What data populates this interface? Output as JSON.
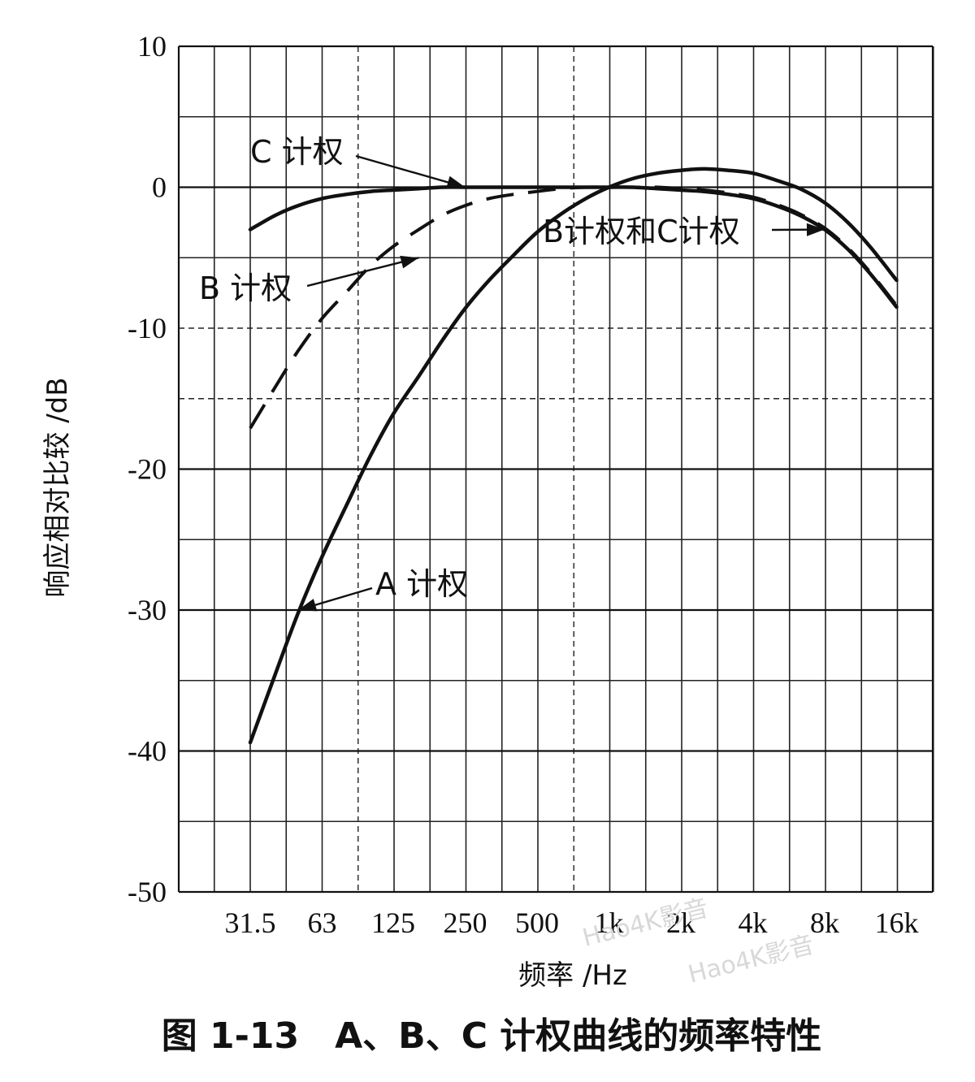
{
  "chart_data": {
    "type": "line",
    "title": "",
    "caption": "图 1-13　A、B、C 计权曲线的频率特性",
    "xlabel": "频率 /Hz",
    "ylabel": "响应相对比较 /dB",
    "x_scale": "log-octave",
    "categories": [
      "31.5",
      "63",
      "125",
      "250",
      "500",
      "1k",
      "2k",
      "4k",
      "8k",
      "16k"
    ],
    "x_values": [
      31.5,
      63,
      125,
      250,
      500,
      1000,
      2000,
      4000,
      8000,
      16000
    ],
    "y_ticks": [
      "10",
      "0",
      "-10",
      "-20",
      "-30",
      "-40",
      "-50"
    ],
    "y_tick_values": [
      10,
      0,
      -10,
      -20,
      -30,
      -40,
      -50
    ],
    "ylim": [
      -50,
      10
    ],
    "grid": true,
    "series": [
      {
        "name": "A计权",
        "style": "solid",
        "x": [
          31.5,
          40,
          50,
          63,
          80,
          100,
          125,
          160,
          200,
          250,
          315,
          400,
          500,
          630,
          800,
          1000,
          1250,
          1600,
          2000,
          2500,
          3150,
          4000,
          5000,
          6300,
          8000,
          10000,
          12500,
          16000
        ],
        "y": [
          -39.4,
          -34.6,
          -30.2,
          -26.2,
          -22.5,
          -19.1,
          -16.1,
          -13.4,
          -10.9,
          -8.6,
          -6.6,
          -4.8,
          -3.2,
          -1.9,
          -0.8,
          0,
          0.6,
          1.0,
          1.2,
          1.3,
          1.2,
          1.0,
          0.5,
          -0.1,
          -1.1,
          -2.5,
          -4.3,
          -6.6
        ]
      },
      {
        "name": "B计权",
        "style": "dashed",
        "x": [
          31.5,
          40,
          50,
          63,
          80,
          100,
          125,
          160,
          200,
          250,
          315,
          400,
          500,
          630,
          800,
          1000,
          1250,
          1600,
          2000,
          2500,
          3150,
          4000,
          5000,
          6300,
          8000,
          10000,
          12500,
          16000
        ],
        "y": [
          -17.1,
          -14.2,
          -11.6,
          -9.3,
          -7.4,
          -5.6,
          -4.2,
          -3.0,
          -2.0,
          -1.3,
          -0.8,
          -0.5,
          -0.3,
          -0.1,
          0,
          0,
          0,
          0,
          -0.1,
          -0.2,
          -0.4,
          -0.7,
          -1.2,
          -1.9,
          -2.9,
          -4.3,
          -6.1,
          -8.4
        ]
      },
      {
        "name": "C计权",
        "style": "solid",
        "x": [
          31.5,
          40,
          50,
          63,
          80,
          100,
          125,
          160,
          200,
          250,
          315,
          400,
          500,
          630,
          800,
          1000,
          1250,
          1600,
          2000,
          2500,
          3150,
          4000,
          5000,
          6300,
          8000,
          10000,
          12500,
          16000
        ],
        "y": [
          -3.0,
          -2.0,
          -1.3,
          -0.8,
          -0.5,
          -0.3,
          -0.2,
          -0.1,
          0,
          0,
          0,
          0,
          0,
          0,
          0,
          0,
          0,
          -0.1,
          -0.2,
          -0.3,
          -0.5,
          -0.8,
          -1.3,
          -2.0,
          -3.0,
          -4.4,
          -6.2,
          -8.5
        ]
      }
    ],
    "annotations": [
      {
        "id": "c",
        "text": "C 计权",
        "points_to": [
          250,
          0
        ]
      },
      {
        "id": "b",
        "text": "B 计权",
        "points_to": [
          160,
          -5
        ]
      },
      {
        "id": "bc",
        "text": "B计权和C计权",
        "points_to": [
          8000,
          -3
        ]
      },
      {
        "id": "a",
        "text": "A 计权",
        "points_to": [
          50,
          -30
        ]
      }
    ]
  },
  "watermarks": [
    "Hao4K影音",
    "Hao4K影音"
  ]
}
